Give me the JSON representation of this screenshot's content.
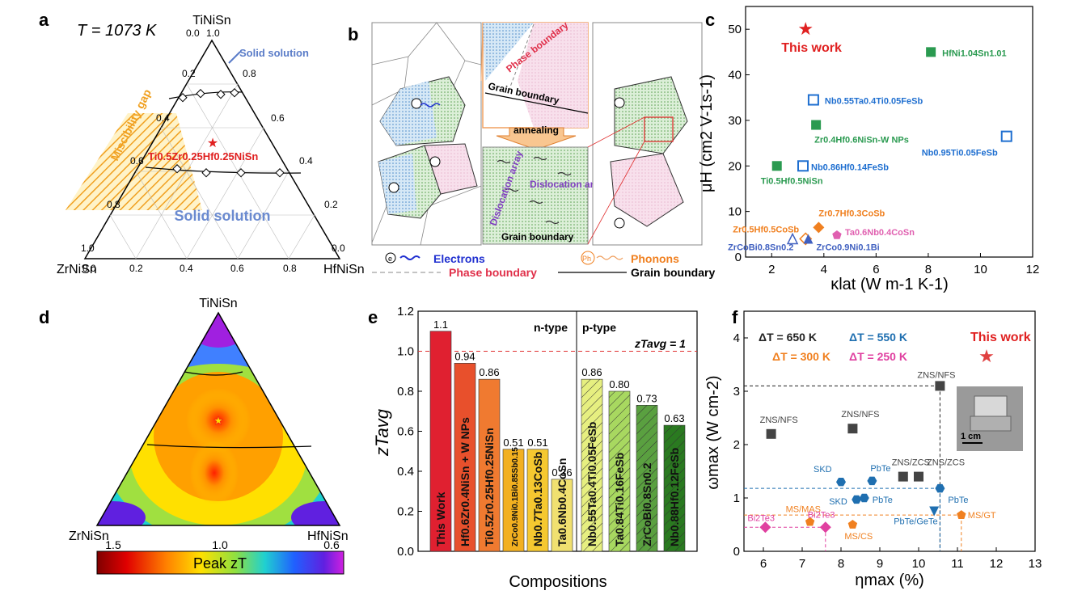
{
  "panels": {
    "a": {
      "letter": "a",
      "temp": "T = 1073 K",
      "top": "TiNiSn",
      "left": "ZrNiSn",
      "right": "HfNiSn",
      "solid_top": "Solid solution",
      "solid_bottom": "Solid solution",
      "gap": "Miscibility gap",
      "comp": "Ti0.5Zr0.25Hf0.25NiSn",
      "ticks": [
        "0.0",
        "0.2",
        "0.4",
        "0.6",
        "0.8",
        "1.0"
      ],
      "ticks_r": [
        "1.0",
        "0.8",
        "0.6",
        "0.4",
        "0.2",
        "0.0"
      ]
    },
    "b": {
      "letter": "b",
      "phase": "Phase boundary",
      "grain": "Grain boundary",
      "annealing": "annealing",
      "dis1": "Dislocation array",
      "dis2": "Dislocation array",
      "grain2": "Grain boundary",
      "legend": {
        "electrons": "Electrons",
        "phonons": "Phonons",
        "phase": "Phase boundary",
        "grain": "Grain boundary",
        "e": "e",
        "ph": "Ph"
      }
    },
    "c": {
      "letter": "c",
      "ylabel": "μH (cm2 V-1s-1)",
      "xlabel": "κlat (W m-1 K-1)",
      "this_work": "This work"
    },
    "d": {
      "letter": "d",
      "top": "TiNiSn",
      "left": "ZrNiSn",
      "right": "HfNiSn",
      "cbar_label": "Peak zT",
      "cbar_ticks": [
        "1.5",
        "1.0",
        "0.6"
      ]
    },
    "e": {
      "letter": "e",
      "ylabel": "zTavg",
      "xlabel": "Compositions",
      "ntype": "n-type",
      "ptype": "p-type",
      "ref": "zTavg = 1"
    },
    "f": {
      "letter": "f",
      "ylabel": "ωmax (W cm-2)",
      "xlabel": "ηmax (%)",
      "this_work": "This work",
      "scale": "1 cm",
      "legend": [
        {
          "text": "ΔT = 650 K",
          "color": "#222222"
        },
        {
          "text": "ΔT = 550 K",
          "color": "#1f6fb0"
        },
        {
          "text": "ΔT = 300 K",
          "color": "#f08020"
        },
        {
          "text": "ΔT = 250 K",
          "color": "#e040a0"
        }
      ]
    }
  },
  "chart_data": [
    {
      "panel": "c",
      "type": "scatter",
      "xlim": [
        1,
        12
      ],
      "ylim": [
        0,
        55
      ],
      "xticks": [
        "2",
        "4",
        "6",
        "8",
        "10",
        "12"
      ],
      "yticks": [
        "0",
        "10",
        "20",
        "30",
        "40",
        "50"
      ],
      "points": [
        {
          "label": "This work",
          "x": 3.3,
          "y": 50,
          "marker": "star",
          "color": "#e02020"
        },
        {
          "label": "HfNi1.04Sn1.01",
          "x": 8.1,
          "y": 45,
          "marker": "square",
          "color": "#2a9a50"
        },
        {
          "label": "Nb0.55Ta0.4Ti0.05FeSb",
          "x": 3.6,
          "y": 34.5,
          "marker": "open-square",
          "color": "#1f6fd0"
        },
        {
          "label": "Zr0.4Hf0.6NiSn-W NPs",
          "x": 3.7,
          "y": 29,
          "marker": "square",
          "color": "#2a9a50"
        },
        {
          "label": "Nb0.95Ti0.05FeSb",
          "x": 11,
          "y": 26.5,
          "marker": "open-square",
          "color": "#1f6fd0"
        },
        {
          "label": "Nb0.86Hf0.14FeSb",
          "x": 3.2,
          "y": 20,
          "marker": "open-square",
          "color": "#1f6fd0"
        },
        {
          "label": "Ti0.5Hf0.5NiSn",
          "x": 2.2,
          "y": 20,
          "marker": "square",
          "color": "#2a9a50"
        },
        {
          "label": "Zr0.7Hf0.3CoSb",
          "x": 3.8,
          "y": 6.5,
          "marker": "diamond",
          "color": "#f08020"
        },
        {
          "label": "Zr0.5Hf0.5CoSb",
          "x": 3.3,
          "y": 4,
          "marker": "open-diamond",
          "color": "#f08020"
        },
        {
          "label": "Ta0.6Nb0.4CoSn",
          "x": 4.5,
          "y": 4.8,
          "marker": "pentagon",
          "color": "#e060b0"
        },
        {
          "label": "ZrCoBi0.8Sn0.2",
          "x": 2.8,
          "y": 4,
          "marker": "open-triangle",
          "color": "#4060c0"
        },
        {
          "label": "ZrCo0.9Ni0.1Bi",
          "x": 3.4,
          "y": 4,
          "marker": "triangle",
          "color": "#4060c0"
        }
      ]
    },
    {
      "panel": "e",
      "type": "bar",
      "ylim": [
        0,
        1.2
      ],
      "yticks": [
        "0.0",
        "0.2",
        "0.4",
        "0.6",
        "0.8",
        "1.0",
        "1.2"
      ],
      "categories": [
        "This Work",
        "Hf0.6Zr0.4NiSn + W NPs",
        "Ti0.5Zr0.25Hf0.25NiSn",
        "ZrCo0.9Ni0.1Bi0.85Sb0.15",
        "Nb0.7Ta0.13CoSb",
        "Ta0.6Nb0.4CoSn",
        "Nb0.55Ta0.4Ti0.05FeSb",
        "Ta0.84Ti0.16FeSb",
        "ZrCoBi0.8Sn0.2",
        "Nb0.88Hf0.12FeSb"
      ],
      "values": [
        1.1,
        0.94,
        0.86,
        0.51,
        0.51,
        0.36,
        0.86,
        0.8,
        0.73,
        0.63
      ],
      "value_labels": [
        "1.1",
        "0.94",
        "0.86",
        "0.51",
        "0.51",
        "0.36",
        "0.86",
        "0.80",
        "0.73",
        "0.63"
      ],
      "colors": [
        "#e02030",
        "#e8502c",
        "#f07a30",
        "#f2b020",
        "#f5c830",
        "#f0e070",
        "#e6ef80",
        "#a8d860",
        "#5aa040",
        "#2a7a20"
      ]
    },
    {
      "panel": "f",
      "type": "scatter",
      "xlim": [
        5.5,
        13
      ],
      "ylim": [
        0,
        4.5
      ],
      "xticks": [
        "6",
        "7",
        "8",
        "9",
        "10",
        "11",
        "12",
        "13"
      ],
      "yticks": [
        "0",
        "1",
        "2",
        "3",
        "4"
      ],
      "points": [
        {
          "label": "This work",
          "x": 11.75,
          "y": 3.65,
          "marker": "star",
          "color": "#e04040"
        },
        {
          "label": "ZNS/NFS",
          "x": 10.55,
          "y": 3.1,
          "marker": "square",
          "color": "#444444"
        },
        {
          "label": "ZNS/NFS",
          "x": 6.2,
          "y": 2.2,
          "marker": "square",
          "color": "#444444"
        },
        {
          "label": "ZNS/NFS",
          "x": 8.3,
          "y": 2.3,
          "marker": "square",
          "color": "#444444"
        },
        {
          "label": "ZNS/ZCS",
          "x": 9.6,
          "y": 1.4,
          "marker": "square",
          "color": "#444444"
        },
        {
          "label": "ZNS/ZCS",
          "x": 10.0,
          "y": 1.4,
          "marker": "square",
          "color": "#444444"
        },
        {
          "label": "SKD",
          "x": 8.0,
          "y": 1.3,
          "marker": "hexagon",
          "color": "#1f6fb0"
        },
        {
          "label": "PbTe",
          "x": 8.8,
          "y": 1.32,
          "marker": "hexagon",
          "color": "#1f6fb0"
        },
        {
          "label": "PbTe",
          "x": 10.55,
          "y": 1.18,
          "marker": "hexagon",
          "color": "#1f6fb0"
        },
        {
          "label": "SKD",
          "x": 8.4,
          "y": 0.97,
          "marker": "hexagon",
          "color": "#1f6fb0"
        },
        {
          "label": "PbTe",
          "x": 8.6,
          "y": 1.0,
          "marker": "hexagon",
          "color": "#1f6fb0"
        },
        {
          "label": "PbTe/GeTe",
          "x": 10.4,
          "y": 0.75,
          "marker": "triangle-down",
          "color": "#1f6fb0"
        },
        {
          "label": "MS/GT",
          "x": 11.1,
          "y": 0.68,
          "marker": "pentagon",
          "color": "#f08020"
        },
        {
          "label": "MS/MAS",
          "x": 7.2,
          "y": 0.55,
          "marker": "pentagon",
          "color": "#f08020"
        },
        {
          "label": "MS/CS",
          "x": 8.3,
          "y": 0.5,
          "marker": "pentagon",
          "color": "#f08020"
        },
        {
          "label": "Bi2Te3",
          "x": 6.05,
          "y": 0.45,
          "marker": "diamond",
          "color": "#e040a0"
        },
        {
          "label": "Bi2Te3",
          "x": 7.6,
          "y": 0.45,
          "marker": "diamond",
          "color": "#e040a0"
        }
      ]
    }
  ]
}
